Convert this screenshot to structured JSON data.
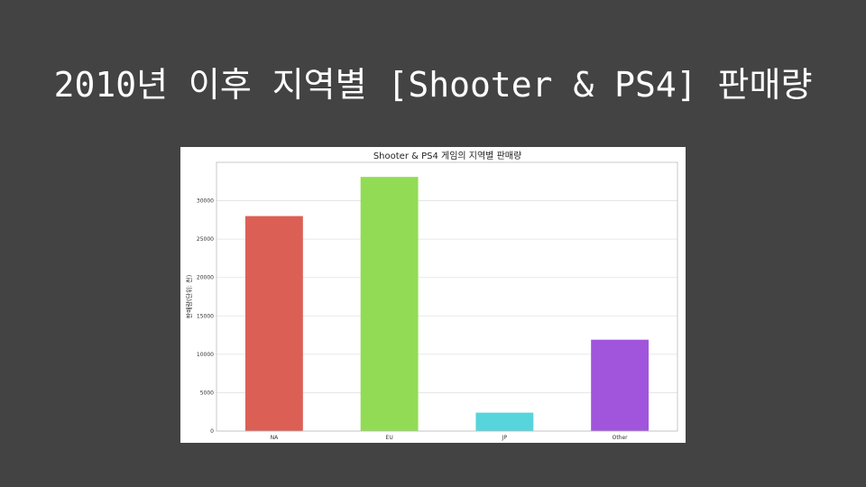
{
  "slide": {
    "title": "2010년 이후 지역별 [Shooter & PS4] 판매량"
  },
  "chart_data": {
    "type": "bar",
    "title": "Shooter & PS4 게임의 지역별 판매량",
    "xlabel": "",
    "ylabel": "판매량(단위: 천)",
    "categories": [
      "NA",
      "EU",
      "JP",
      "Other"
    ],
    "values": [
      28000,
      33100,
      2400,
      11900
    ],
    "colors": [
      "#dc5f55",
      "#92dc55",
      "#57d4dc",
      "#a055dc"
    ],
    "ylim": [
      0,
      35000
    ],
    "yticks": [
      0,
      5000,
      10000,
      15000,
      20000,
      25000,
      30000
    ],
    "grid": true
  }
}
